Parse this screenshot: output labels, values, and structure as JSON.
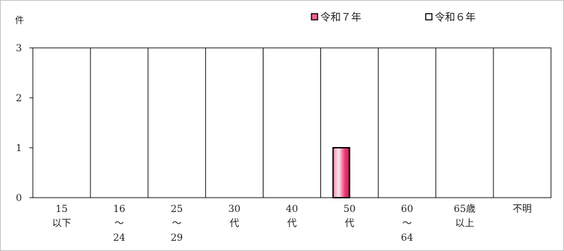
{
  "chart_data": {
    "type": "bar",
    "unit_label": "件",
    "categories": [
      [
        "15",
        "以下"
      ],
      [
        "16",
        "～",
        "24"
      ],
      [
        "25",
        "～",
        "29"
      ],
      [
        "30",
        "代"
      ],
      [
        "40",
        "代"
      ],
      [
        "50",
        "代"
      ],
      [
        "60",
        "～",
        "64"
      ],
      [
        "65歳",
        "以上"
      ],
      [
        "不明"
      ]
    ],
    "series": [
      {
        "name": "令和７年",
        "values": [
          0,
          0,
          0,
          0,
          0,
          1,
          0,
          0,
          0
        ],
        "color": "#f06292"
      },
      {
        "name": "令和６年",
        "values": [
          0,
          0,
          0,
          0,
          0,
          0,
          0,
          0,
          0
        ],
        "color": "#ffffff"
      }
    ],
    "ylim": [
      0,
      3
    ],
    "yticks": [
      0,
      1,
      2,
      3
    ],
    "grid": "vertical category separators",
    "legend": "top-right"
  }
}
